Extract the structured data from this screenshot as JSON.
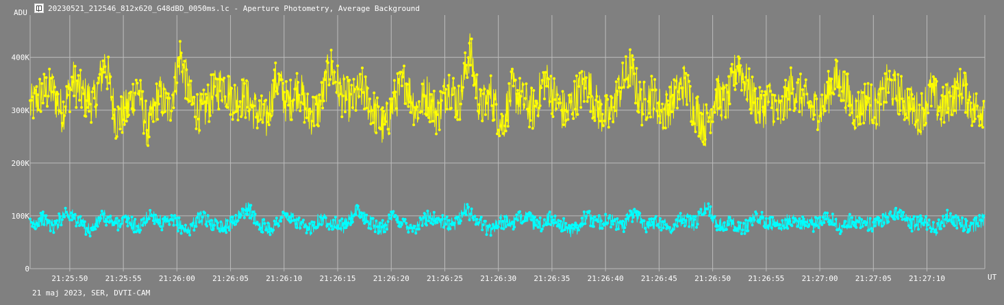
{
  "window": {
    "title": "20230521_212546_812x620_G48dBD_0050ms.lc - Aperture Photometry, Average Background",
    "icon": "app-icon"
  },
  "footer": {
    "note": "21 maj 2023, SER, DVTI-CAM"
  },
  "colors": {
    "background": "#808080",
    "grid": "#bdbdbd",
    "series_yellow": "#ffff00",
    "series_cyan": "#00ffff",
    "text": "#ffffff"
  },
  "chart_data": {
    "type": "line",
    "ylabel": "ADU",
    "xlabel": "UT",
    "ylim": [
      0,
      480000
    ],
    "y_ticks": [
      {
        "value": 0,
        "label": "0"
      },
      {
        "value": 100000,
        "label": "100K"
      },
      {
        "value": 200000,
        "label": "200K"
      },
      {
        "value": 300000,
        "label": "300K"
      },
      {
        "value": 400000,
        "label": "400K"
      }
    ],
    "x_ticks": [
      "21:25:50",
      "21:25:55",
      "21:26:00",
      "21:26:05",
      "21:26:10",
      "21:26:15",
      "21:26:20",
      "21:26:25",
      "21:26:30",
      "21:26:35",
      "21:26:40",
      "21:26:45",
      "21:26:50",
      "21:26:55",
      "21:27:00",
      "21:27:05",
      "21:27:10"
    ],
    "xlim": [
      "21:25:46.3",
      "21:27:15.4"
    ],
    "grid": true,
    "series": [
      {
        "color": "#ffff00",
        "sample_interval_s": 0.05,
        "values": [
          305000,
          330000,
          340000,
          296000,
          355000,
          325000,
          315000,
          395000,
          280000,
          300000,
          345000,
          260000,
          330000,
          300000,
          405000,
          315000,
          290000,
          330000,
          350000,
          320000,
          325000,
          300000,
          280000,
          360000,
          310000,
          345000,
          290000,
          305000,
          385000,
          330000,
          315000,
          340000,
          300000,
          265000,
          320000,
          355000,
          300000,
          330000,
          290000,
          350000,
          310000,
          415000,
          300000,
          330000,
          270000,
          340000,
          315000,
          300000,
          360000,
          320000,
          290000,
          330000,
          350000,
          300000,
          285000,
          340000,
          380000,
          310000,
          330000,
          295000,
          320000,
          350000,
          300000,
          270000,
          330000,
          310000,
          390000,
          340000,
          300000,
          320000,
          290000,
          345000,
          325000,
          300000,
          310000,
          360000,
          340000,
          295000,
          320000,
          300000,
          350000,
          330000,
          310000,
          290000,
          335000,
          300000,
          325000,
          345000,
          300000,
          310000
        ]
      },
      {
        "color": "#00ffff",
        "sample_interval_s": 0.05,
        "values": [
          82000,
          95000,
          78000,
          110000,
          88000,
          72000,
          100000,
          85000,
          92000,
          76000,
          105000,
          83000,
          90000,
          70000,
          98000,
          87000,
          79000,
          93000,
          115000,
          84000,
          76000,
          101000,
          89000,
          72000,
          95000,
          86000,
          80000,
          108000,
          91000,
          75000,
          97000,
          85000,
          78000,
          100000,
          88000,
          82000,
          112000,
          93000,
          74000,
          90000,
          86000,
          103000,
          79000,
          95000,
          84000,
          70000,
          99000,
          87000,
          92000,
          80000,
          106000,
          83000,
          90000,
          77000,
          96000,
          85000,
          118000,
          82000,
          91000,
          74000,
          100000,
          88000,
          79000,
          94000,
          86000,
          83000,
          102000,
          76000,
          92000,
          88000,
          81000,
          97000,
          110000,
          84000,
          90000,
          73000,
          99000,
          86000,
          80000,
          95000
        ]
      }
    ]
  }
}
